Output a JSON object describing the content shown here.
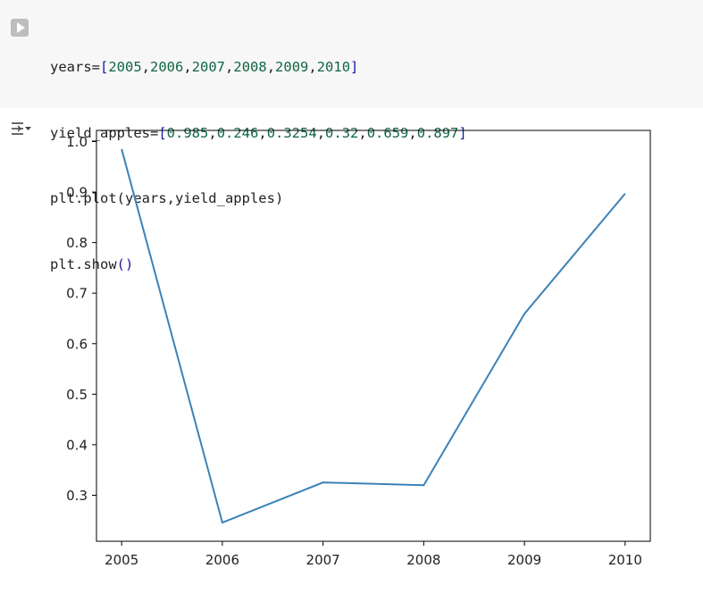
{
  "code_cell": {
    "run_icon": "play-icon",
    "lines": [
      {
        "prefix": "years=",
        "open": "[",
        "items": [
          "2005",
          "2006",
          "2007",
          "2008",
          "2009",
          "2010"
        ],
        "close": "]"
      },
      {
        "prefix": "yield_apples=",
        "open": "[",
        "items": [
          "0.985",
          "0.246",
          "0.3254",
          "0.32",
          "0.659",
          "0.897"
        ],
        "close": "]"
      },
      {
        "plain": "plt.plot(years,yield_apples)"
      },
      {
        "plain_prefix": "plt.show",
        "parens": "()"
      }
    ]
  },
  "output": {
    "icon": "output-collapse-icon"
  },
  "chart_data": {
    "type": "line",
    "x": [
      2005,
      2006,
      2007,
      2008,
      2009,
      2010
    ],
    "y": [
      0.985,
      0.246,
      0.3254,
      0.32,
      0.659,
      0.897
    ],
    "xticks": [
      "2005",
      "2006",
      "2007",
      "2008",
      "2009",
      "2010"
    ],
    "yticks": [
      "0.3",
      "0.4",
      "0.5",
      "0.6",
      "0.7",
      "0.8",
      "0.9",
      "1.0"
    ],
    "xlim": [
      2004.75,
      2010.25
    ],
    "ylim": [
      0.209,
      1.022
    ],
    "grid": false,
    "line_color": "#3b82b8"
  }
}
